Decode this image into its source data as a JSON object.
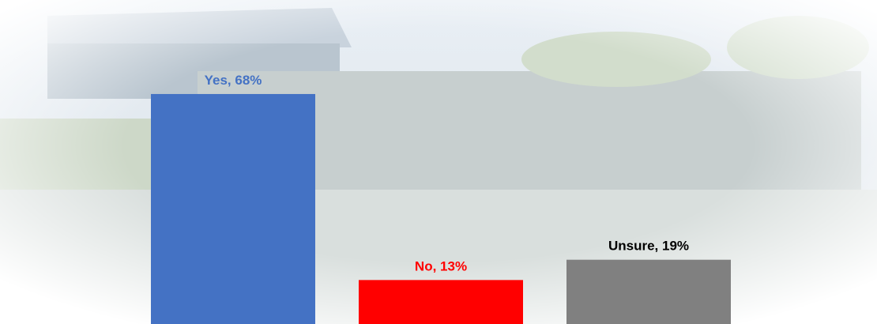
{
  "chart_data": {
    "type": "bar",
    "values": [
      68,
      13,
      19
    ],
    "value_labels": [
      "Yes, 68%",
      "No, 13%",
      "Unsure, 19%"
    ],
    "colors": [
      "#4472c4",
      "#ff0000",
      "#808080"
    ],
    "label_colors": [
      "#4472c4",
      "#ff0000",
      "#000000"
    ]
  }
}
